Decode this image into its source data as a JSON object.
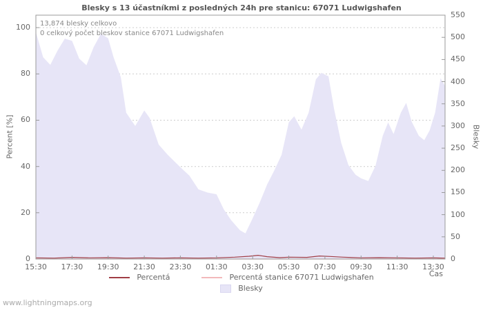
{
  "title": "Blesky s 13 účastníkmi z posledných 24h pre stanicu: 67071 Ludwigshafen",
  "annotations": {
    "total": "13,874 blesky celkovo",
    "station_total": "0 celkový počet bleskov stanice 67071 Ludwigshafen"
  },
  "axes": {
    "left_label": "Percent  [%]",
    "right_label": "Blesky",
    "x_label": "Čas",
    "left_ticks": [
      0,
      20,
      40,
      60,
      80,
      100
    ],
    "right_ticks": [
      0,
      50,
      100,
      150,
      200,
      250,
      300,
      350,
      400,
      450,
      500,
      550
    ],
    "x_ticks": [
      "15:30",
      "17:30",
      "19:30",
      "21:30",
      "23:30",
      "01:30",
      "03:30",
      "05:30",
      "07:30",
      "09:30",
      "11:30",
      "13:30"
    ]
  },
  "legend": {
    "percent_label": "Percentá",
    "station_label": "Percentá stanice 67071 Ludwigshafen",
    "area_label": "Blesky"
  },
  "watermark": "www.lightningmaps.org",
  "colors": {
    "area_fill": "#e7e5f7",
    "area_edge": "#d9d6f0",
    "percent_line": "#a03c44",
    "station_line": "#f2b9bb",
    "grid": "#cccccc",
    "axis": "#999999",
    "text": "#666666"
  },
  "chart_data": {
    "type": "area",
    "title": "Blesky s 13 účastníkmi z posledných 24h pre stanicu: 67071 Ludwigshafen",
    "xlabel": "Čas",
    "ylabel_left": "Percent [%]",
    "ylabel_right": "Blesky",
    "x_unit": "hours_from_15:30",
    "x_range": [
      0,
      22.65
    ],
    "x_tick_hours": [
      0,
      2,
      4,
      6,
      8,
      10,
      12,
      14,
      16,
      18,
      20,
      22
    ],
    "ylim_left": [
      0,
      105.4
    ],
    "ylim_right": [
      0,
      550
    ],
    "grid": "horizontal-dotted",
    "legend_position": "bottom",
    "series": [
      {
        "name": "Blesky",
        "axis": "right",
        "kind": "area",
        "points": [
          [
            0,
            512
          ],
          [
            0.4,
            455
          ],
          [
            0.8,
            438
          ],
          [
            1.2,
            470
          ],
          [
            1.6,
            497
          ],
          [
            2.0,
            492
          ],
          [
            2.4,
            452
          ],
          [
            2.8,
            437
          ],
          [
            3.2,
            478
          ],
          [
            3.6,
            508
          ],
          [
            4.0,
            498
          ],
          [
            4.3,
            455
          ],
          [
            4.7,
            410
          ],
          [
            5.0,
            330
          ],
          [
            5.5,
            300
          ],
          [
            6.0,
            335
          ],
          [
            6.3,
            318
          ],
          [
            6.8,
            258
          ],
          [
            7.3,
            235
          ],
          [
            8.0,
            207
          ],
          [
            8.5,
            188
          ],
          [
            9.0,
            157
          ],
          [
            9.5,
            150
          ],
          [
            10.0,
            146
          ],
          [
            10.4,
            112
          ],
          [
            10.8,
            88
          ],
          [
            11.3,
            65
          ],
          [
            11.6,
            58
          ],
          [
            12.0,
            92
          ],
          [
            12.4,
            128
          ],
          [
            12.8,
            168
          ],
          [
            13.2,
            200
          ],
          [
            13.6,
            235
          ],
          [
            14.0,
            308
          ],
          [
            14.3,
            322
          ],
          [
            14.7,
            292
          ],
          [
            15.1,
            330
          ],
          [
            15.5,
            405
          ],
          [
            15.8,
            420
          ],
          [
            16.2,
            412
          ],
          [
            16.5,
            340
          ],
          [
            16.9,
            262
          ],
          [
            17.3,
            212
          ],
          [
            17.7,
            190
          ],
          [
            18.0,
            182
          ],
          [
            18.4,
            176
          ],
          [
            18.8,
            210
          ],
          [
            19.2,
            278
          ],
          [
            19.5,
            308
          ],
          [
            19.8,
            282
          ],
          [
            20.2,
            330
          ],
          [
            20.5,
            352
          ],
          [
            20.8,
            310
          ],
          [
            21.2,
            278
          ],
          [
            21.5,
            268
          ],
          [
            21.8,
            290
          ],
          [
            22.1,
            330
          ],
          [
            22.4,
            408
          ],
          [
            22.65,
            390
          ]
        ]
      },
      {
        "name": "Percentá",
        "axis": "left",
        "kind": "line",
        "points": [
          [
            0,
            0.5
          ],
          [
            1,
            0.4
          ],
          [
            2,
            0.7
          ],
          [
            3,
            0.5
          ],
          [
            4,
            0.6
          ],
          [
            5,
            0.4
          ],
          [
            6,
            0.5
          ],
          [
            7,
            0.4
          ],
          [
            8,
            0.5
          ],
          [
            9,
            0.4
          ],
          [
            10,
            0.5
          ],
          [
            11,
            0.8
          ],
          [
            11.8,
            1.2
          ],
          [
            12.3,
            1.6
          ],
          [
            12.8,
            1.0
          ],
          [
            13.5,
            0.6
          ],
          [
            14,
            0.8
          ],
          [
            15,
            0.7
          ],
          [
            15.7,
            1.3
          ],
          [
            16.3,
            1.1
          ],
          [
            17,
            0.8
          ],
          [
            18,
            0.5
          ],
          [
            19,
            0.6
          ],
          [
            20,
            0.5
          ],
          [
            21,
            0.4
          ],
          [
            22,
            0.5
          ],
          [
            22.65,
            0.4
          ]
        ]
      },
      {
        "name": "Percentá stanice 67071 Ludwigshafen",
        "axis": "left",
        "kind": "line",
        "points": [
          [
            0,
            0
          ],
          [
            22.65,
            0
          ]
        ]
      }
    ]
  }
}
